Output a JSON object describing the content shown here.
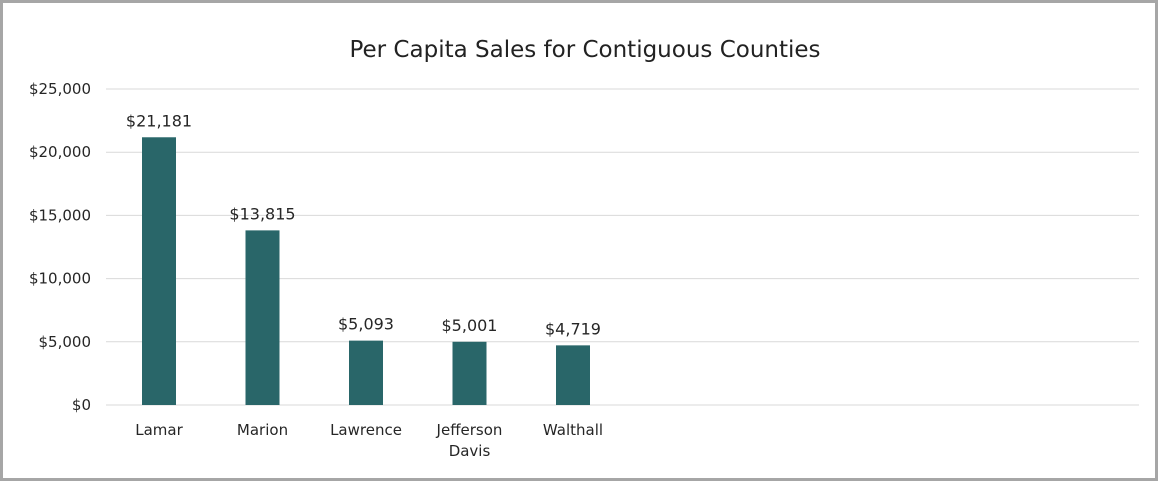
{
  "chart_data": {
    "type": "bar",
    "title": "Per Capita Sales for Contiguous Counties",
    "xlabel": "",
    "ylabel": "",
    "categories": [
      [
        "Lamar"
      ],
      [
        "Marion"
      ],
      [
        "Lawrence"
      ],
      [
        "Jefferson",
        "Davis"
      ],
      [
        "Walthall"
      ]
    ],
    "values": [
      21181,
      13815,
      5093,
      5001,
      4719
    ],
    "data_labels": [
      "$21,181",
      "$13,815",
      "$5,093",
      "$5,001",
      "$4,719"
    ],
    "ylim": [
      0,
      25000
    ],
    "yticks": [
      0,
      5000,
      10000,
      15000,
      20000,
      25000
    ],
    "ytick_labels": [
      "$0",
      "$5,000",
      "$10,000",
      "$15,000",
      "$20,000",
      "$25,000"
    ],
    "grid": true,
    "legend": "none",
    "colors": {
      "bar": "#296669",
      "grid": "#d9d9d9",
      "border": "#a6a6a6"
    }
  }
}
